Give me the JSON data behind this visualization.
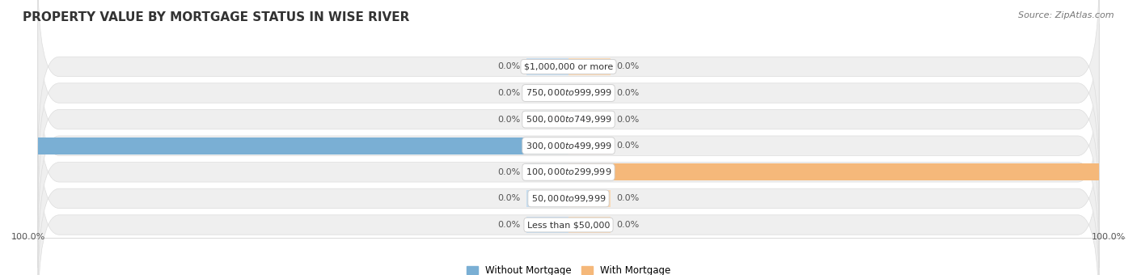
{
  "title": "PROPERTY VALUE BY MORTGAGE STATUS IN WISE RIVER",
  "source": "Source: ZipAtlas.com",
  "categories": [
    "Less than $50,000",
    "$50,000 to $99,999",
    "$100,000 to $299,999",
    "$300,000 to $499,999",
    "$500,000 to $749,999",
    "$750,000 to $999,999",
    "$1,000,000 or more"
  ],
  "without_mortgage": [
    0.0,
    0.0,
    0.0,
    100.0,
    0.0,
    0.0,
    0.0
  ],
  "with_mortgage": [
    0.0,
    0.0,
    100.0,
    0.0,
    0.0,
    0.0,
    0.0
  ],
  "color_without": "#7aafd4",
  "color_with": "#f5b87a",
  "color_without_pale": "#c5ddf0",
  "color_with_pale": "#fad9b5",
  "bg_color": "#ffffff",
  "row_bg_even": "#f0f0f0",
  "row_bg_odd": "#e8e8e8",
  "row_bg": "#ebebeb",
  "center_label_bg": "#ffffff",
  "xlim_left": -100,
  "xlim_right": 100,
  "legend_label_without": "Without Mortgage",
  "legend_label_with": "With Mortgage",
  "axis_label_left": "100.0%",
  "axis_label_right": "100.0%",
  "stub_size_without": 8,
  "stub_size_with": 8,
  "title_fontsize": 11,
  "label_fontsize": 8,
  "source_fontsize": 8
}
